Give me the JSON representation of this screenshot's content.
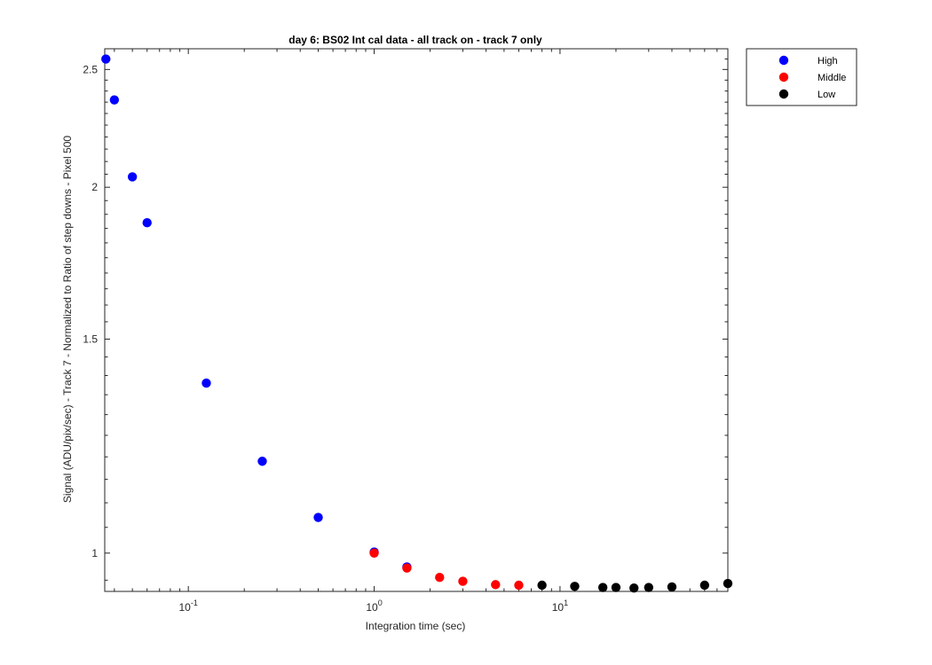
{
  "chart_data": {
    "type": "scatter",
    "title": "day 6: BS02   Int cal data - all track on - track 7 only",
    "xlabel": "Integration time (sec)",
    "ylabel": "Signal (ADU/pix/sec) - Track 7 - Normalized to Ratio of step downs - Pixel 500",
    "xscale": "log",
    "yscale": "log",
    "xlim": [
      0.0355,
      80
    ],
    "ylim": [
      0.93,
      2.6
    ],
    "x_ticks": [
      {
        "value": 0.1,
        "base": "10",
        "exp": "-1"
      },
      {
        "value": 1,
        "base": "10",
        "exp": "0"
      },
      {
        "value": 10,
        "base": "10",
        "exp": "1"
      }
    ],
    "y_ticks": [
      {
        "value": 1,
        "label": "1"
      },
      {
        "value": 1.5,
        "label": "1.5"
      },
      {
        "value": 2,
        "label": "2"
      },
      {
        "value": 2.5,
        "label": "2.5"
      }
    ],
    "grid": false,
    "legend_position": "outside-top-right",
    "series": [
      {
        "name": "High",
        "color": "#0000ff",
        "points": [
          [
            0.036,
            2.55
          ],
          [
            0.04,
            2.36
          ],
          [
            0.05,
            2.04
          ],
          [
            0.06,
            1.87
          ],
          [
            0.125,
            1.38
          ],
          [
            0.25,
            1.19
          ],
          [
            0.5,
            1.07
          ],
          [
            1.0,
            1.002
          ],
          [
            1.5,
            0.974
          ]
        ]
      },
      {
        "name": "Middle",
        "color": "#ff0000",
        "points": [
          [
            1.0,
            1.0
          ],
          [
            1.5,
            0.972
          ],
          [
            2.25,
            0.955
          ],
          [
            3.0,
            0.948
          ],
          [
            4.5,
            0.942
          ],
          [
            6.0,
            0.941
          ]
        ]
      },
      {
        "name": "Low",
        "color": "#000000",
        "points": [
          [
            8.0,
            0.941
          ],
          [
            12.0,
            0.939
          ],
          [
            17.0,
            0.937
          ],
          [
            20.0,
            0.937
          ],
          [
            25.0,
            0.936
          ],
          [
            30.0,
            0.937
          ],
          [
            40.0,
            0.938
          ],
          [
            60.0,
            0.941
          ],
          [
            80.0,
            0.944
          ]
        ]
      }
    ]
  }
}
